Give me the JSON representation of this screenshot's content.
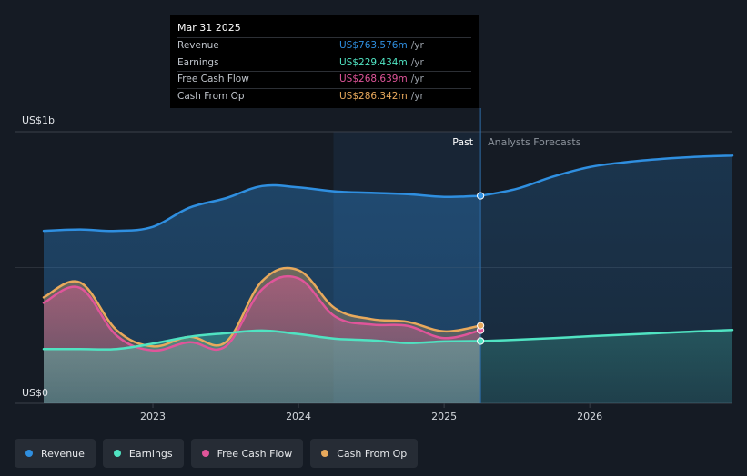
{
  "chart_data": {
    "type": "area",
    "title": "",
    "ylabel_top": "US$1b",
    "ylabel_bottom": "US$0",
    "ylim": [
      0,
      1000
    ],
    "xlim": [
      2022.25,
      2026.98
    ],
    "x_ticks": [
      {
        "value": 2023,
        "label": "2023"
      },
      {
        "value": 2024,
        "label": "2024"
      },
      {
        "value": 2025,
        "label": "2025"
      },
      {
        "value": 2026,
        "label": "2026"
      }
    ],
    "past_label": "Past",
    "forecast_label": "Analysts Forecasts",
    "divider_x": 2025.25,
    "shade_start_x": 2024.24,
    "series": [
      {
        "name": "Revenue",
        "color": "#2f8fe0",
        "x": [
          2022.25,
          2022.5,
          2022.75,
          2023.0,
          2023.25,
          2023.5,
          2023.75,
          2024.0,
          2024.25,
          2024.5,
          2024.75,
          2025.0,
          2025.25
        ],
        "values": [
          635,
          640,
          635,
          650,
          720,
          755,
          800,
          795,
          780,
          775,
          770,
          760,
          764
        ],
        "forecast_x": [
          2025.25,
          2025.5,
          2025.75,
          2026.0,
          2026.25,
          2026.5,
          2026.75,
          2026.98
        ],
        "forecast_values": [
          764,
          790,
          835,
          870,
          888,
          900,
          908,
          912
        ]
      },
      {
        "name": "Earnings",
        "color": "#50e3c2",
        "x": [
          2022.25,
          2022.5,
          2022.75,
          2023.0,
          2023.25,
          2023.5,
          2023.75,
          2024.0,
          2024.25,
          2024.5,
          2024.75,
          2025.0,
          2025.25
        ],
        "values": [
          200,
          200,
          200,
          220,
          245,
          258,
          268,
          255,
          238,
          232,
          222,
          228,
          229
        ],
        "forecast_x": [
          2025.25,
          2025.5,
          2025.75,
          2026.0,
          2026.25,
          2026.5,
          2026.75,
          2026.98
        ],
        "forecast_values": [
          229,
          234,
          240,
          247,
          253,
          259,
          265,
          270
        ]
      },
      {
        "name": "Free Cash Flow",
        "color": "#e0559a",
        "x": [
          2022.25,
          2022.5,
          2022.75,
          2023.0,
          2023.25,
          2023.5,
          2023.75,
          2024.0,
          2024.25,
          2024.5,
          2024.75,
          2025.0,
          2025.25
        ],
        "values": [
          370,
          425,
          250,
          195,
          225,
          210,
          420,
          460,
          320,
          290,
          285,
          240,
          269
        ]
      },
      {
        "name": "Cash From Op",
        "color": "#e8a95c",
        "x": [
          2022.25,
          2022.5,
          2022.75,
          2023.0,
          2023.25,
          2023.5,
          2023.75,
          2024.0,
          2024.25,
          2024.5,
          2024.75,
          2025.0,
          2025.25
        ],
        "values": [
          390,
          445,
          270,
          210,
          245,
          225,
          450,
          490,
          350,
          310,
          300,
          265,
          286
        ]
      }
    ]
  },
  "tooltip": {
    "date": "Mar 31 2025",
    "rows": [
      {
        "label": "Revenue",
        "value": "US$763.576m",
        "unit": "/yr",
        "color": "#2f8fe0"
      },
      {
        "label": "Earnings",
        "value": "US$229.434m",
        "unit": "/yr",
        "color": "#50e3c2"
      },
      {
        "label": "Free Cash Flow",
        "value": "US$268.639m",
        "unit": "/yr",
        "color": "#e0559a"
      },
      {
        "label": "Cash From Op",
        "value": "US$286.342m",
        "unit": "/yr",
        "color": "#e8a95c"
      }
    ]
  },
  "legend": [
    {
      "label": "Revenue",
      "color": "#2f8fe0"
    },
    {
      "label": "Earnings",
      "color": "#50e3c2"
    },
    {
      "label": "Free Cash Flow",
      "color": "#e0559a"
    },
    {
      "label": "Cash From Op",
      "color": "#e8a95c"
    }
  ]
}
